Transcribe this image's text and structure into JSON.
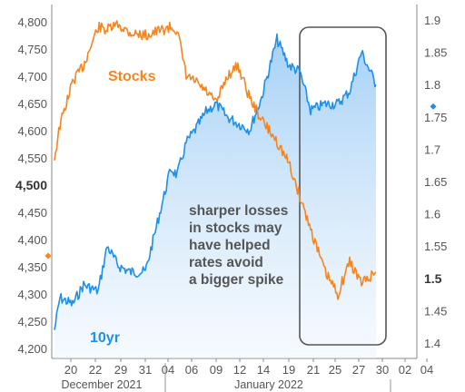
{
  "chart_data": {
    "type": "line",
    "x_axis": {
      "ticks": [
        "20",
        "22",
        "24",
        "26",
        "28",
        "30",
        "01",
        "03",
        "05",
        "07",
        "09",
        "11",
        "13",
        "15",
        "17",
        "19",
        "21",
        "23",
        "25",
        "27",
        "29",
        "31",
        "02",
        "04",
        "06",
        "08",
        "10",
        "12",
        "14",
        "16",
        "18",
        "20",
        "22",
        "24",
        "26",
        "28",
        "30",
        "01",
        "03"
      ],
      "tick_labels": [
        "22",
        "29",
        "31",
        "04",
        "06",
        "09",
        "12",
        "14",
        "19",
        "21",
        "25",
        "27",
        "30",
        "02",
        "04"
      ],
      "months": [
        "December 2021",
        "January 2022"
      ]
    },
    "y_left": {
      "ticks": [
        4200,
        4250,
        4300,
        4350,
        4400,
        4450,
        4500,
        4550,
        4600,
        4650,
        4700,
        4750,
        4800
      ],
      "tick_labels": [
        "4,200",
        "4,250",
        "4,300",
        "4,350",
        "4,400",
        "4,450",
        "4,500",
        "4,550",
        "4,600",
        "4,650",
        "4,700",
        "4,750",
        "4,800"
      ],
      "highlight": "4,500",
      "ylim": [
        4195,
        4825
      ]
    },
    "y_right": {
      "ticks": [
        1.4,
        1.45,
        1.5,
        1.55,
        1.6,
        1.65,
        1.7,
        1.75,
        1.8,
        1.85,
        1.9
      ],
      "tick_labels": [
        "1.4",
        "1.45",
        "1.5",
        "1.55",
        "1.6",
        "1.65",
        "1.7",
        "1.75",
        "1.8",
        "1.85",
        "1.9"
      ],
      "highlight": "1.5",
      "ylim": [
        1.385,
        1.915
      ]
    },
    "series": [
      {
        "name": "Stocks",
        "axis": "left",
        "color": "#F5851F",
        "x": [
          "Dec 20",
          "Dec 21",
          "Dec 22",
          "Dec 23",
          "Dec 27",
          "Dec 28",
          "Dec 29",
          "Dec 30",
          "Dec 31",
          "Jan 3",
          "Jan 4",
          "Jan 5",
          "Jan 6",
          "Jan 7",
          "Jan 10",
          "Jan 11",
          "Jan 12",
          "Jan 13",
          "Jan 14",
          "Jan 18",
          "Jan 19",
          "Jan 20",
          "Jan 21",
          "Jan 24",
          "Jan 25",
          "Jan 26",
          "Jan 27",
          "Jan 28"
        ],
        "values": [
          4550,
          4610,
          4690,
          4720,
          4790,
          4785,
          4795,
          4780,
          4775,
          4790,
          4785,
          4700,
          4690,
          4670,
          4650,
          4700,
          4720,
          4660,
          4620,
          4580,
          4540,
          4480,
          4420,
          4340,
          4300,
          4360,
          4320,
          4340
        ],
        "end_marker": 4370
      },
      {
        "name": "10yr",
        "axis": "right",
        "color": "#1E90E8",
        "x": [
          "Dec 20",
          "Dec 21",
          "Dec 22",
          "Dec 23",
          "Dec 27",
          "Dec 28",
          "Dec 29",
          "Dec 30",
          "Dec 31",
          "Jan 3",
          "Jan 4",
          "Jan 5",
          "Jan 6",
          "Jan 7",
          "Jan 10",
          "Jan 11",
          "Jan 12",
          "Jan 13",
          "Jan 14",
          "Jan 18",
          "Jan 19",
          "Jan 20",
          "Jan 21",
          "Jan 24",
          "Jan 25",
          "Jan 26",
          "Jan 27",
          "Jan 28"
        ],
        "values": [
          1.42,
          1.47,
          1.46,
          1.49,
          1.48,
          1.55,
          1.52,
          1.51,
          1.51,
          1.67,
          1.66,
          1.71,
          1.73,
          1.76,
          1.77,
          1.75,
          1.74,
          1.73,
          1.78,
          1.87,
          1.83,
          1.82,
          1.76,
          1.77,
          1.77,
          1.79,
          1.85,
          1.8
        ],
        "end_marker": 1.766
      }
    ],
    "annotation": {
      "lines": [
        "sharper losses",
        "in stocks may",
        "have helped",
        "rates avoid",
        "a bigger spike"
      ]
    },
    "highlight_box": {
      "x_start": "Jan 21",
      "x_end": "Jan 30"
    },
    "grid": false,
    "legend": "inline labels"
  }
}
